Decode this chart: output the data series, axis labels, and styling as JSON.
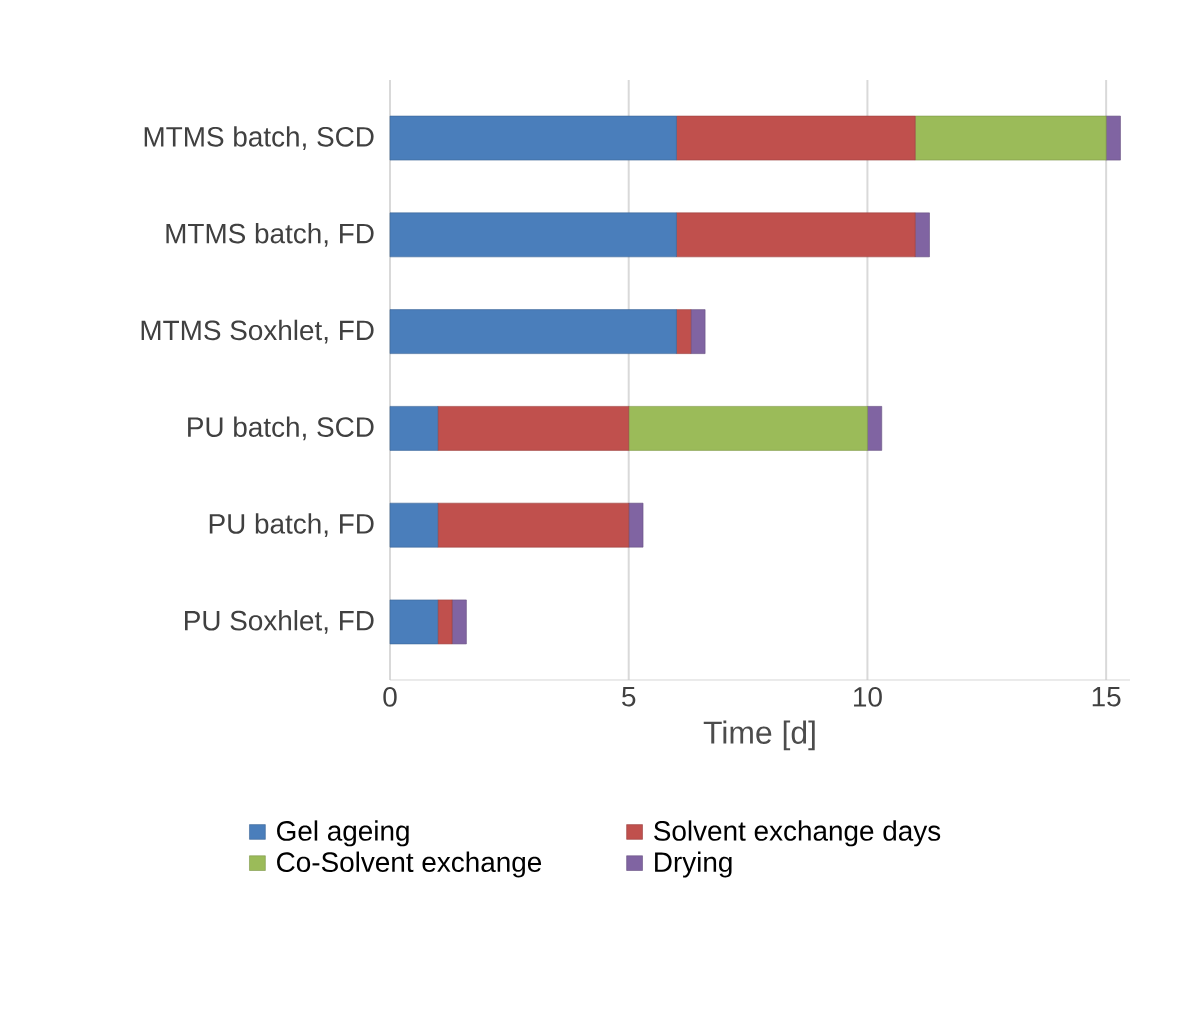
{
  "chart_data": {
    "type": "bar",
    "orientation": "horizontal",
    "stacked": true,
    "xlabel": "Time [d]",
    "categories": [
      "MTMS batch, SCD",
      "MTMS batch, FD",
      "MTMS Soxhlet, FD",
      "PU batch, SCD",
      "PU batch, FD",
      "PU Soxhlet, FD"
    ],
    "series": [
      {
        "name": "Gel ageing",
        "color": "#4a7ebb",
        "values": [
          6,
          6,
          6,
          1,
          1,
          1
        ]
      },
      {
        "name": "Solvent exchange days",
        "color": "#c0504d",
        "values": [
          5,
          5,
          0.3,
          4,
          4,
          0.3
        ]
      },
      {
        "name": "Co-Solvent exchange",
        "color": "#9bbb59",
        "values": [
          4,
          0,
          0,
          5,
          0,
          0
        ]
      },
      {
        "name": "Drying",
        "color": "#8064a2",
        "values": [
          0.3,
          0.3,
          0.3,
          0.3,
          0.3,
          0.3
        ]
      }
    ],
    "xlim": [
      0,
      15.5
    ],
    "xticks": [
      0,
      5,
      10,
      15
    ],
    "grid": "x",
    "legend": "bottom"
  }
}
